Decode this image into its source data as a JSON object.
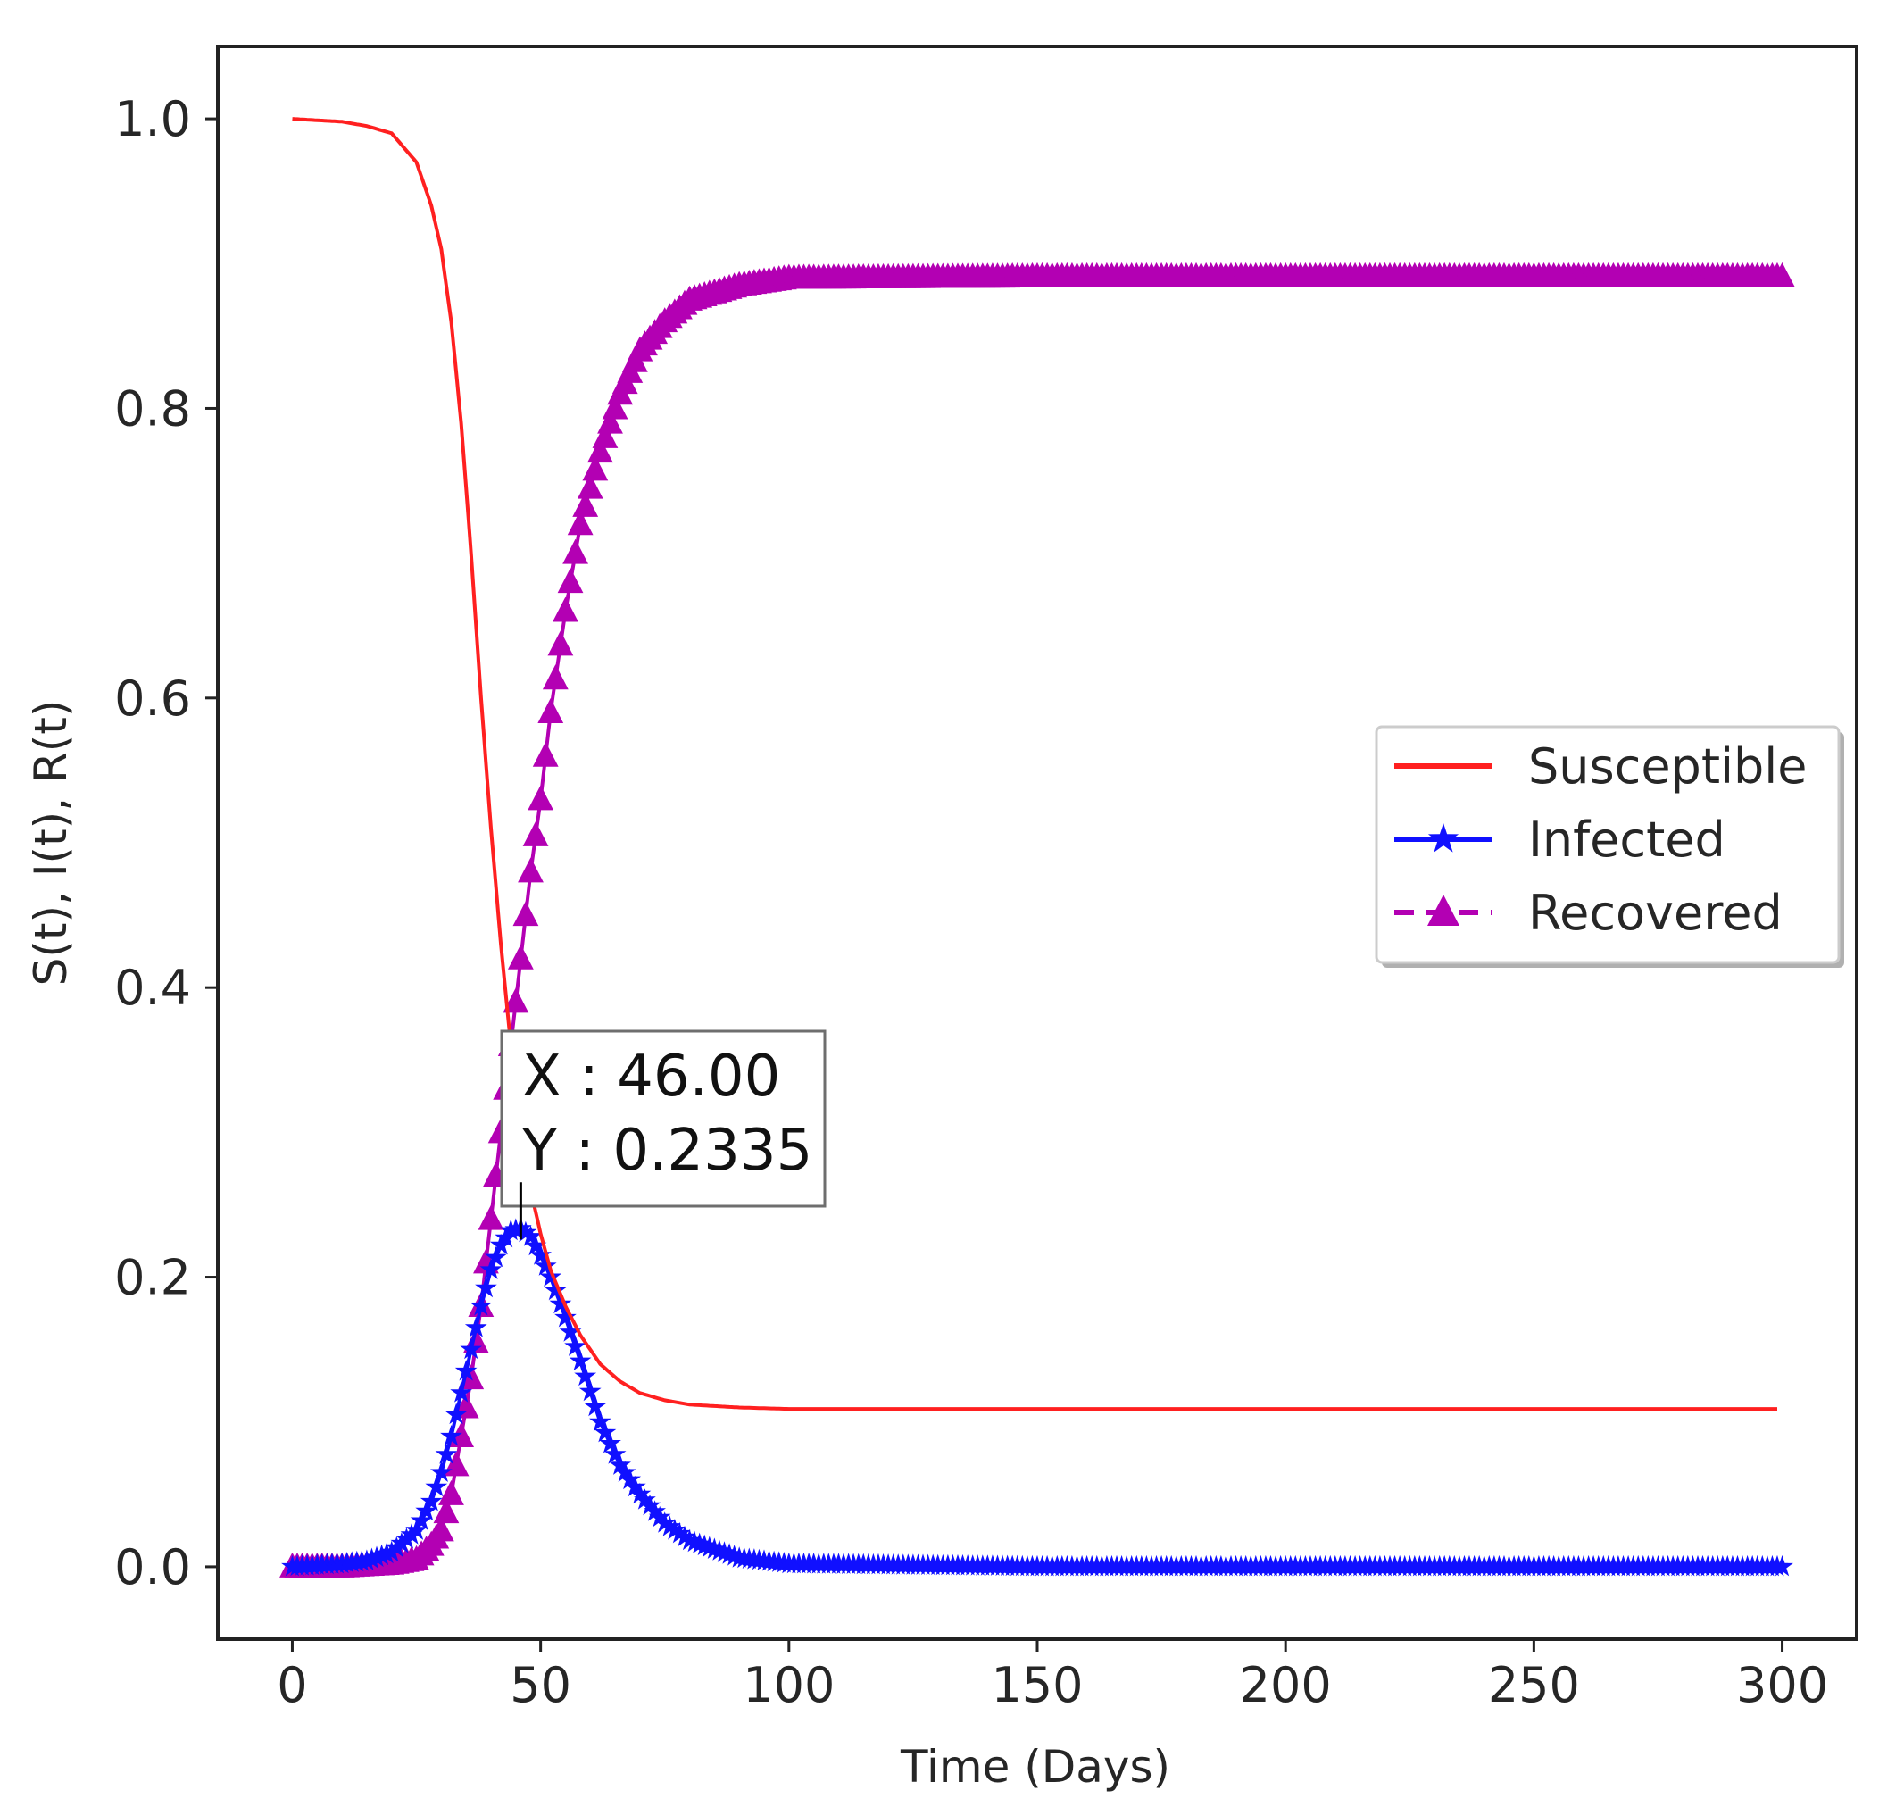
{
  "chart_data": {
    "type": "line",
    "title": "",
    "xlabel": "Time (Days)",
    "ylabel": "S(t), I(t), R(t)",
    "xlim": [
      -15,
      315
    ],
    "ylim": [
      -0.05,
      1.05
    ],
    "xticks": [
      0,
      50,
      100,
      150,
      200,
      250,
      300
    ],
    "xtick_labels": [
      "0",
      "50",
      "100",
      "150",
      "200",
      "250",
      "300"
    ],
    "yticks": [
      0.0,
      0.2,
      0.4,
      0.6,
      0.8,
      1.0
    ],
    "ytick_labels": [
      "0.0",
      "0.2",
      "0.4",
      "0.6",
      "0.8",
      "1.0"
    ],
    "grid": false,
    "legend_position": "center-right",
    "series": [
      {
        "name": "Susceptible",
        "color": "#ff2020",
        "marker": "none",
        "line": "solid",
        "x": [
          0,
          10,
          15,
          20,
          25,
          28,
          30,
          32,
          34,
          36,
          38,
          40,
          42,
          44,
          46,
          48,
          50,
          52,
          55,
          58,
          62,
          66,
          70,
          75,
          80,
          90,
          100,
          150,
          200,
          250,
          299
        ],
        "values": [
          1.0,
          0.998,
          0.995,
          0.99,
          0.97,
          0.94,
          0.91,
          0.86,
          0.79,
          0.7,
          0.6,
          0.51,
          0.43,
          0.36,
          0.3,
          0.26,
          0.23,
          0.205,
          0.18,
          0.16,
          0.14,
          0.128,
          0.12,
          0.115,
          0.112,
          0.11,
          0.109,
          0.109,
          0.109,
          0.109,
          0.109
        ]
      },
      {
        "name": "Infected",
        "color": "#1010ff",
        "marker": "star",
        "line": "solid",
        "x": [
          0,
          10,
          15,
          20,
          25,
          28,
          30,
          32,
          34,
          36,
          38,
          40,
          42,
          44,
          46,
          48,
          50,
          52,
          55,
          58,
          62,
          66,
          70,
          75,
          80,
          90,
          100,
          150,
          200,
          250,
          300
        ],
        "values": [
          0.0,
          0.002,
          0.004,
          0.01,
          0.025,
          0.045,
          0.065,
          0.09,
          0.12,
          0.15,
          0.18,
          0.205,
          0.222,
          0.232,
          0.2335,
          0.228,
          0.215,
          0.2,
          0.172,
          0.142,
          0.1,
          0.07,
          0.05,
          0.03,
          0.018,
          0.006,
          0.002,
          0.0,
          0.0,
          0.0,
          0.0
        ]
      },
      {
        "name": "Recovered",
        "color": "#b300b3",
        "marker": "triangle",
        "line": "dashed",
        "x": [
          0,
          10,
          15,
          20,
          25,
          28,
          30,
          32,
          34,
          36,
          38,
          40,
          42,
          44,
          46,
          48,
          50,
          52,
          55,
          58,
          62,
          66,
          70,
          75,
          80,
          90,
          100,
          150,
          200,
          250,
          300
        ],
        "values": [
          0.0,
          0.0,
          0.001,
          0.002,
          0.005,
          0.015,
          0.025,
          0.05,
          0.09,
          0.13,
          0.18,
          0.24,
          0.3,
          0.36,
          0.42,
          0.48,
          0.53,
          0.59,
          0.66,
          0.72,
          0.77,
          0.81,
          0.84,
          0.86,
          0.875,
          0.885,
          0.89,
          0.891,
          0.891,
          0.891,
          0.891
        ]
      }
    ],
    "annotation": {
      "x_label": "X : 46.00",
      "y_label": "Y : 0.2335",
      "point_x": 46,
      "point_y": 0.2335
    }
  }
}
